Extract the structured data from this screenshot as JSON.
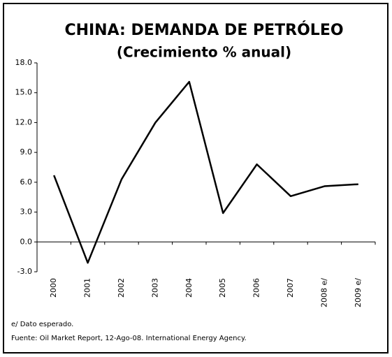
{
  "chart_data": {
    "type": "line",
    "title": "CHINA: DEMANDA DE PETRÓLEO",
    "subtitle": "(Crecimiento % anual)",
    "categories": [
      "2000",
      "2001",
      "2002",
      "2003",
      "2004",
      "2005",
      "2006",
      "2007",
      "2008 e/",
      "2009 e/"
    ],
    "values": [
      6.7,
      -2.1,
      6.3,
      12.0,
      16.1,
      2.9,
      7.8,
      4.6,
      5.6,
      5.8
    ],
    "color": "#000000",
    "ylim": [
      -3,
      18
    ],
    "yticks": [
      {
        "value": -3,
        "label": "-3.0"
      },
      {
        "value": 0,
        "label": "0.0"
      },
      {
        "value": 3,
        "label": "3.0"
      },
      {
        "value": 6,
        "label": "6.0"
      },
      {
        "value": 9,
        "label": "9.0"
      },
      {
        "value": 12,
        "label": "12.0"
      },
      {
        "value": 15,
        "label": "15.0"
      },
      {
        "value": 18,
        "label": "18.0"
      }
    ],
    "notes": [
      "e/ Dato esperado.",
      "Fuente: Oil Market Report, 12-Ago-08. International Energy Agency."
    ]
  }
}
